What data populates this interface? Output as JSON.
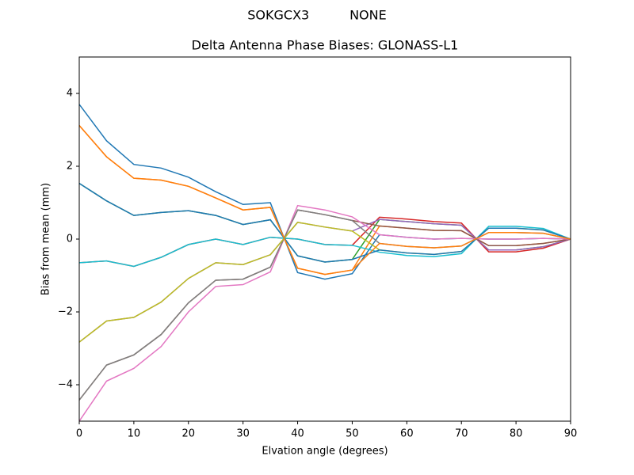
{
  "chart_data": {
    "type": "line",
    "suptitle": "SOKGCX3          NONE",
    "title": "Delta Antenna Phase Biases: GLONASS-L1",
    "xlabel": "Elvation angle (degrees)",
    "ylabel": "Bias from mean (mm)",
    "x": [
      0,
      5,
      10,
      15,
      20,
      25,
      30,
      35,
      40,
      45,
      50,
      55,
      60,
      65,
      70,
      75,
      80,
      85,
      90
    ],
    "xlim": [
      0,
      90
    ],
    "xticks": [
      0,
      10,
      20,
      30,
      40,
      50,
      60,
      70,
      80,
      90
    ],
    "ylim": [
      -5,
      5
    ],
    "yticks": [
      {
        "value": -4,
        "label": "−4"
      },
      {
        "value": -2,
        "label": "−2"
      },
      0,
      2,
      4
    ],
    "grid": false,
    "series": [
      {
        "color": "#1f77b4",
        "values": [
          3.7,
          2.7,
          2.05,
          1.95,
          1.7,
          1.3,
          0.95,
          1.0,
          -0.92,
          -1.1,
          -0.95,
          0.12,
          0.05,
          0,
          0.02,
          0,
          0,
          0.02,
          0
        ]
      },
      {
        "color": "#ff7f0e",
        "values": [
          3.12,
          2.26,
          1.67,
          1.62,
          1.45,
          1.13,
          0.8,
          0.87,
          -0.8,
          -0.97,
          -0.85,
          0.36,
          0.3,
          0.24,
          0.23,
          -0.18,
          -0.18,
          -0.12,
          0
        ]
      },
      {
        "color": "#2ca02c",
        "values": [
          1.53,
          1.05,
          0.65,
          0.73,
          0.78,
          0.65,
          0.4,
          0.53,
          -0.46,
          -0.63,
          -0.56,
          0.54,
          0.48,
          0.42,
          0.38,
          -0.3,
          -0.3,
          -0.21,
          0
        ]
      },
      {
        "color": "#d62728",
        "values": [
          -0.65,
          -0.6,
          -0.75,
          -0.5,
          -0.15,
          0,
          -0.15,
          0.05,
          0,
          -0.15,
          -0.17,
          0.6,
          0.55,
          0.48,
          0.44,
          -0.35,
          -0.35,
          -0.25,
          0
        ]
      },
      {
        "color": "#9467bd",
        "values": [
          -2.83,
          -2.25,
          -2.15,
          -1.73,
          -1.08,
          -0.65,
          -0.7,
          -0.43,
          0.46,
          0.33,
          0.22,
          0.54,
          0.48,
          0.42,
          0.38,
          -0.3,
          -0.3,
          -0.21,
          0
        ]
      },
      {
        "color": "#8c564b",
        "values": [
          -4.42,
          -3.46,
          -3.18,
          -2.62,
          -1.75,
          -1.13,
          -1.1,
          -0.77,
          0.8,
          0.67,
          0.51,
          0.36,
          0.3,
          0.24,
          0.23,
          -0.18,
          -0.18,
          -0.12,
          0
        ]
      },
      {
        "color": "#e377c2",
        "values": [
          -5.0,
          -3.9,
          -3.55,
          -2.95,
          -2.0,
          -1.3,
          -1.25,
          -0.9,
          0.92,
          0.8,
          0.61,
          0.12,
          0.05,
          0,
          0.02,
          0,
          0,
          0.02,
          0
        ]
      },
      {
        "color": "#7f7f7f",
        "values": [
          -4.42,
          -3.46,
          -3.18,
          -2.62,
          -1.75,
          -1.13,
          -1.1,
          -0.77,
          0.8,
          0.67,
          0.51,
          -0.12,
          -0.2,
          -0.24,
          -0.19,
          0.18,
          0.18,
          0.16,
          0
        ]
      },
      {
        "color": "#bcbd22",
        "values": [
          -2.83,
          -2.25,
          -2.15,
          -1.73,
          -1.08,
          -0.65,
          -0.7,
          -0.43,
          0.46,
          0.33,
          0.22,
          -0.3,
          -0.38,
          -0.42,
          -0.34,
          0.3,
          0.3,
          0.25,
          0
        ]
      },
      {
        "color": "#17becf",
        "values": [
          -0.65,
          -0.6,
          -0.75,
          -0.5,
          -0.15,
          0,
          -0.15,
          0.05,
          0,
          -0.15,
          -0.17,
          -0.36,
          -0.45,
          -0.48,
          -0.4,
          0.35,
          0.35,
          0.29,
          0
        ]
      },
      {
        "color": "#1f77b4",
        "values": [
          1.53,
          1.05,
          0.65,
          0.73,
          0.78,
          0.65,
          0.4,
          0.53,
          -0.46,
          -0.63,
          -0.56,
          -0.3,
          -0.38,
          -0.42,
          -0.34,
          0.3,
          0.3,
          0.25,
          0
        ]
      },
      {
        "color": "#ff7f0e",
        "values": [
          3.12,
          2.26,
          1.67,
          1.62,
          1.45,
          1.13,
          0.8,
          0.87,
          -0.8,
          -0.97,
          -0.85,
          -0.12,
          -0.2,
          -0.24,
          -0.19,
          0.18,
          0.18,
          0.16,
          0
        ]
      }
    ]
  }
}
